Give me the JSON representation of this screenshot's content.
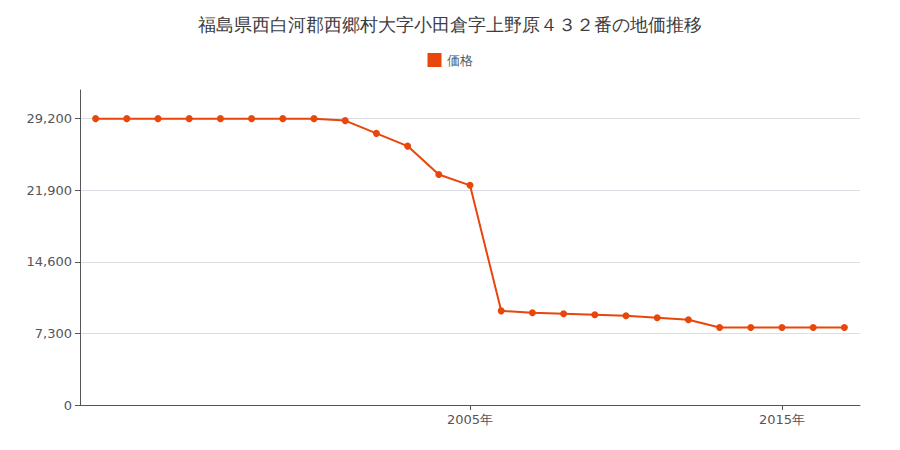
{
  "chart_data": {
    "type": "line",
    "title": "福島県西白河郡西郷村大字小田倉字上野原４３２番の地価推移",
    "x": [
      1993,
      1994,
      1995,
      1996,
      1997,
      1998,
      1999,
      2000,
      2001,
      2002,
      2003,
      2004,
      2005,
      2006,
      2007,
      2008,
      2009,
      2010,
      2011,
      2012,
      2013,
      2014,
      2015,
      2016,
      2017
    ],
    "series": [
      {
        "name": "価格",
        "color": "#E8460A",
        "marker": "circle",
        "values": [
          29200,
          29200,
          29200,
          29200,
          29200,
          29200,
          29200,
          29200,
          29000,
          27700,
          26400,
          23500,
          22400,
          9600,
          9400,
          9300,
          9200,
          9100,
          8900,
          8700,
          7900,
          7900,
          7900,
          7900,
          7900
        ]
      }
    ],
    "xlim": [
      1992.5,
      2017.5
    ],
    "xticks": [
      {
        "value": 2005,
        "label": "2005年"
      },
      {
        "value": 2015,
        "label": "2015年"
      }
    ],
    "ylim": [
      0,
      32120
    ],
    "yticks": [
      0,
      {
        "value": 7300,
        "label": "7,300"
      },
      {
        "value": 14600,
        "label": "14,600"
      },
      {
        "value": 21900,
        "label": "21,900"
      },
      {
        "value": 29200,
        "label": "29,200"
      }
    ],
    "grid": true,
    "legend": "top"
  }
}
